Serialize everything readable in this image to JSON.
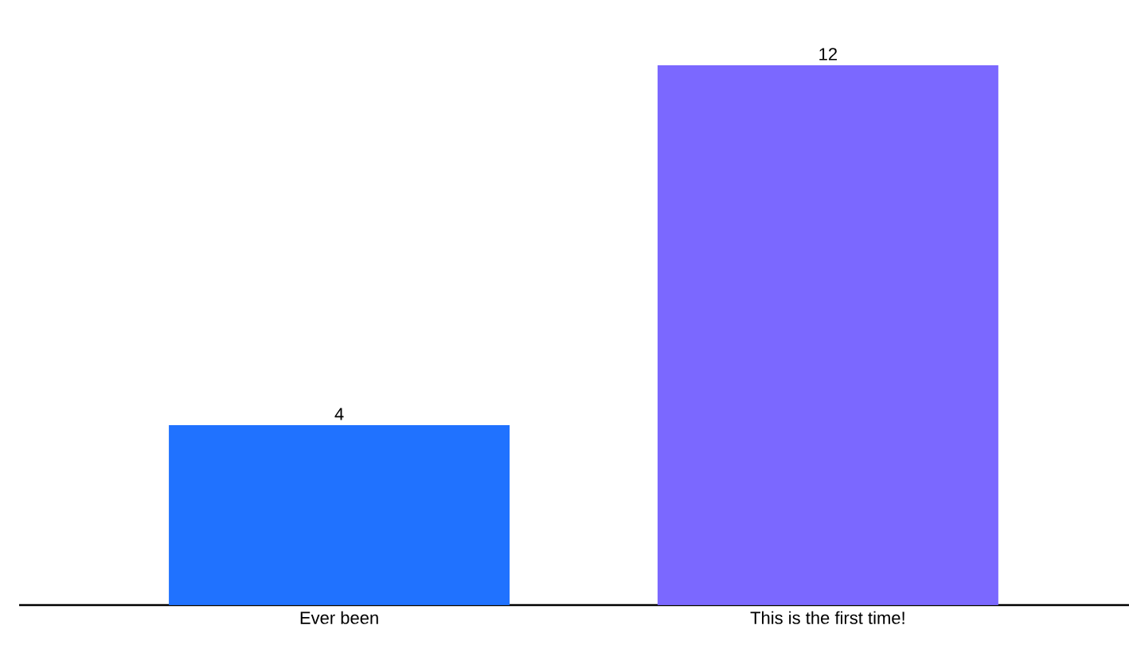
{
  "chart_data": {
    "type": "bar",
    "categories": [
      "Ever been",
      "This is the first time!"
    ],
    "values": [
      4,
      12
    ],
    "colors": [
      "#2072ff",
      "#7b68ff"
    ],
    "data_labels": true
  }
}
